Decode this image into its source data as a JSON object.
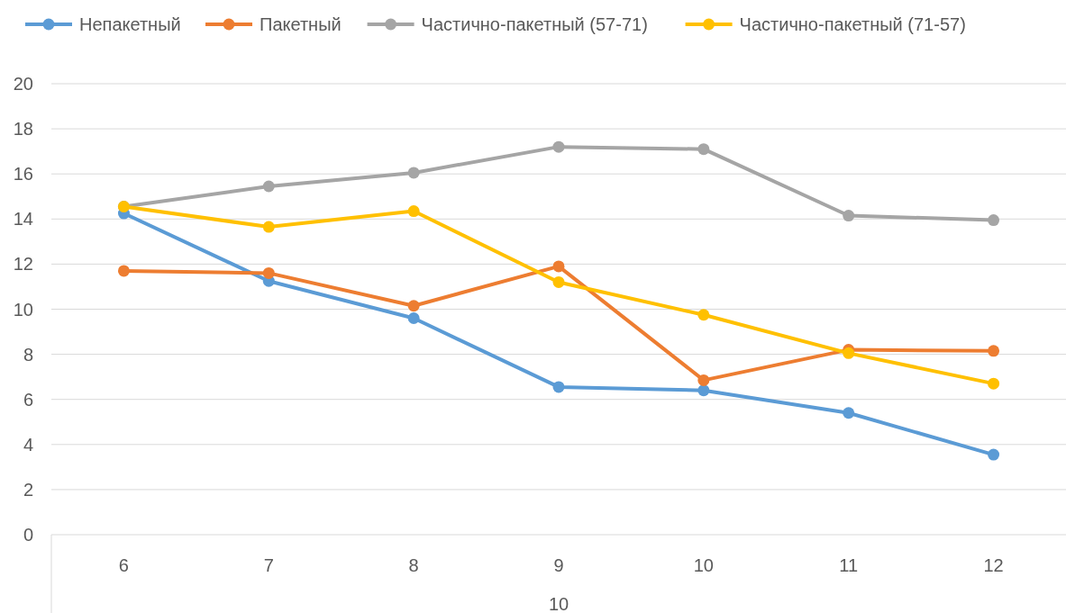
{
  "chart_data": {
    "type": "line",
    "xlabel": "10",
    "categories": [
      "6",
      "7",
      "8",
      "9",
      "10",
      "11",
      "12"
    ],
    "series": [
      {
        "name": "Непакетный",
        "color": "#5b9bd5",
        "values": [
          14.25,
          11.25,
          9.6,
          6.55,
          6.4,
          5.4,
          3.55
        ]
      },
      {
        "name": "Пакетный",
        "color": "#ed7d31",
        "values": [
          11.7,
          11.6,
          10.15,
          11.9,
          6.85,
          8.2,
          8.15
        ]
      },
      {
        "name": "Частично-пакетный (57-71)",
        "color": "#a5a5a5",
        "values": [
          14.55,
          15.45,
          16.05,
          17.2,
          17.1,
          14.15,
          13.95
        ]
      },
      {
        "name": "Частично-пакетный (71-57)",
        "color": "#ffc000",
        "values": [
          14.55,
          13.65,
          14.35,
          11.2,
          9.75,
          8.05,
          6.7
        ]
      }
    ],
    "ylim": [
      0,
      20
    ],
    "yticks": [
      0,
      2,
      4,
      6,
      8,
      10,
      12,
      14,
      16,
      18,
      20
    ],
    "grid": "y",
    "legend": "top",
    "marker": "circle",
    "line_style": "solid"
  }
}
